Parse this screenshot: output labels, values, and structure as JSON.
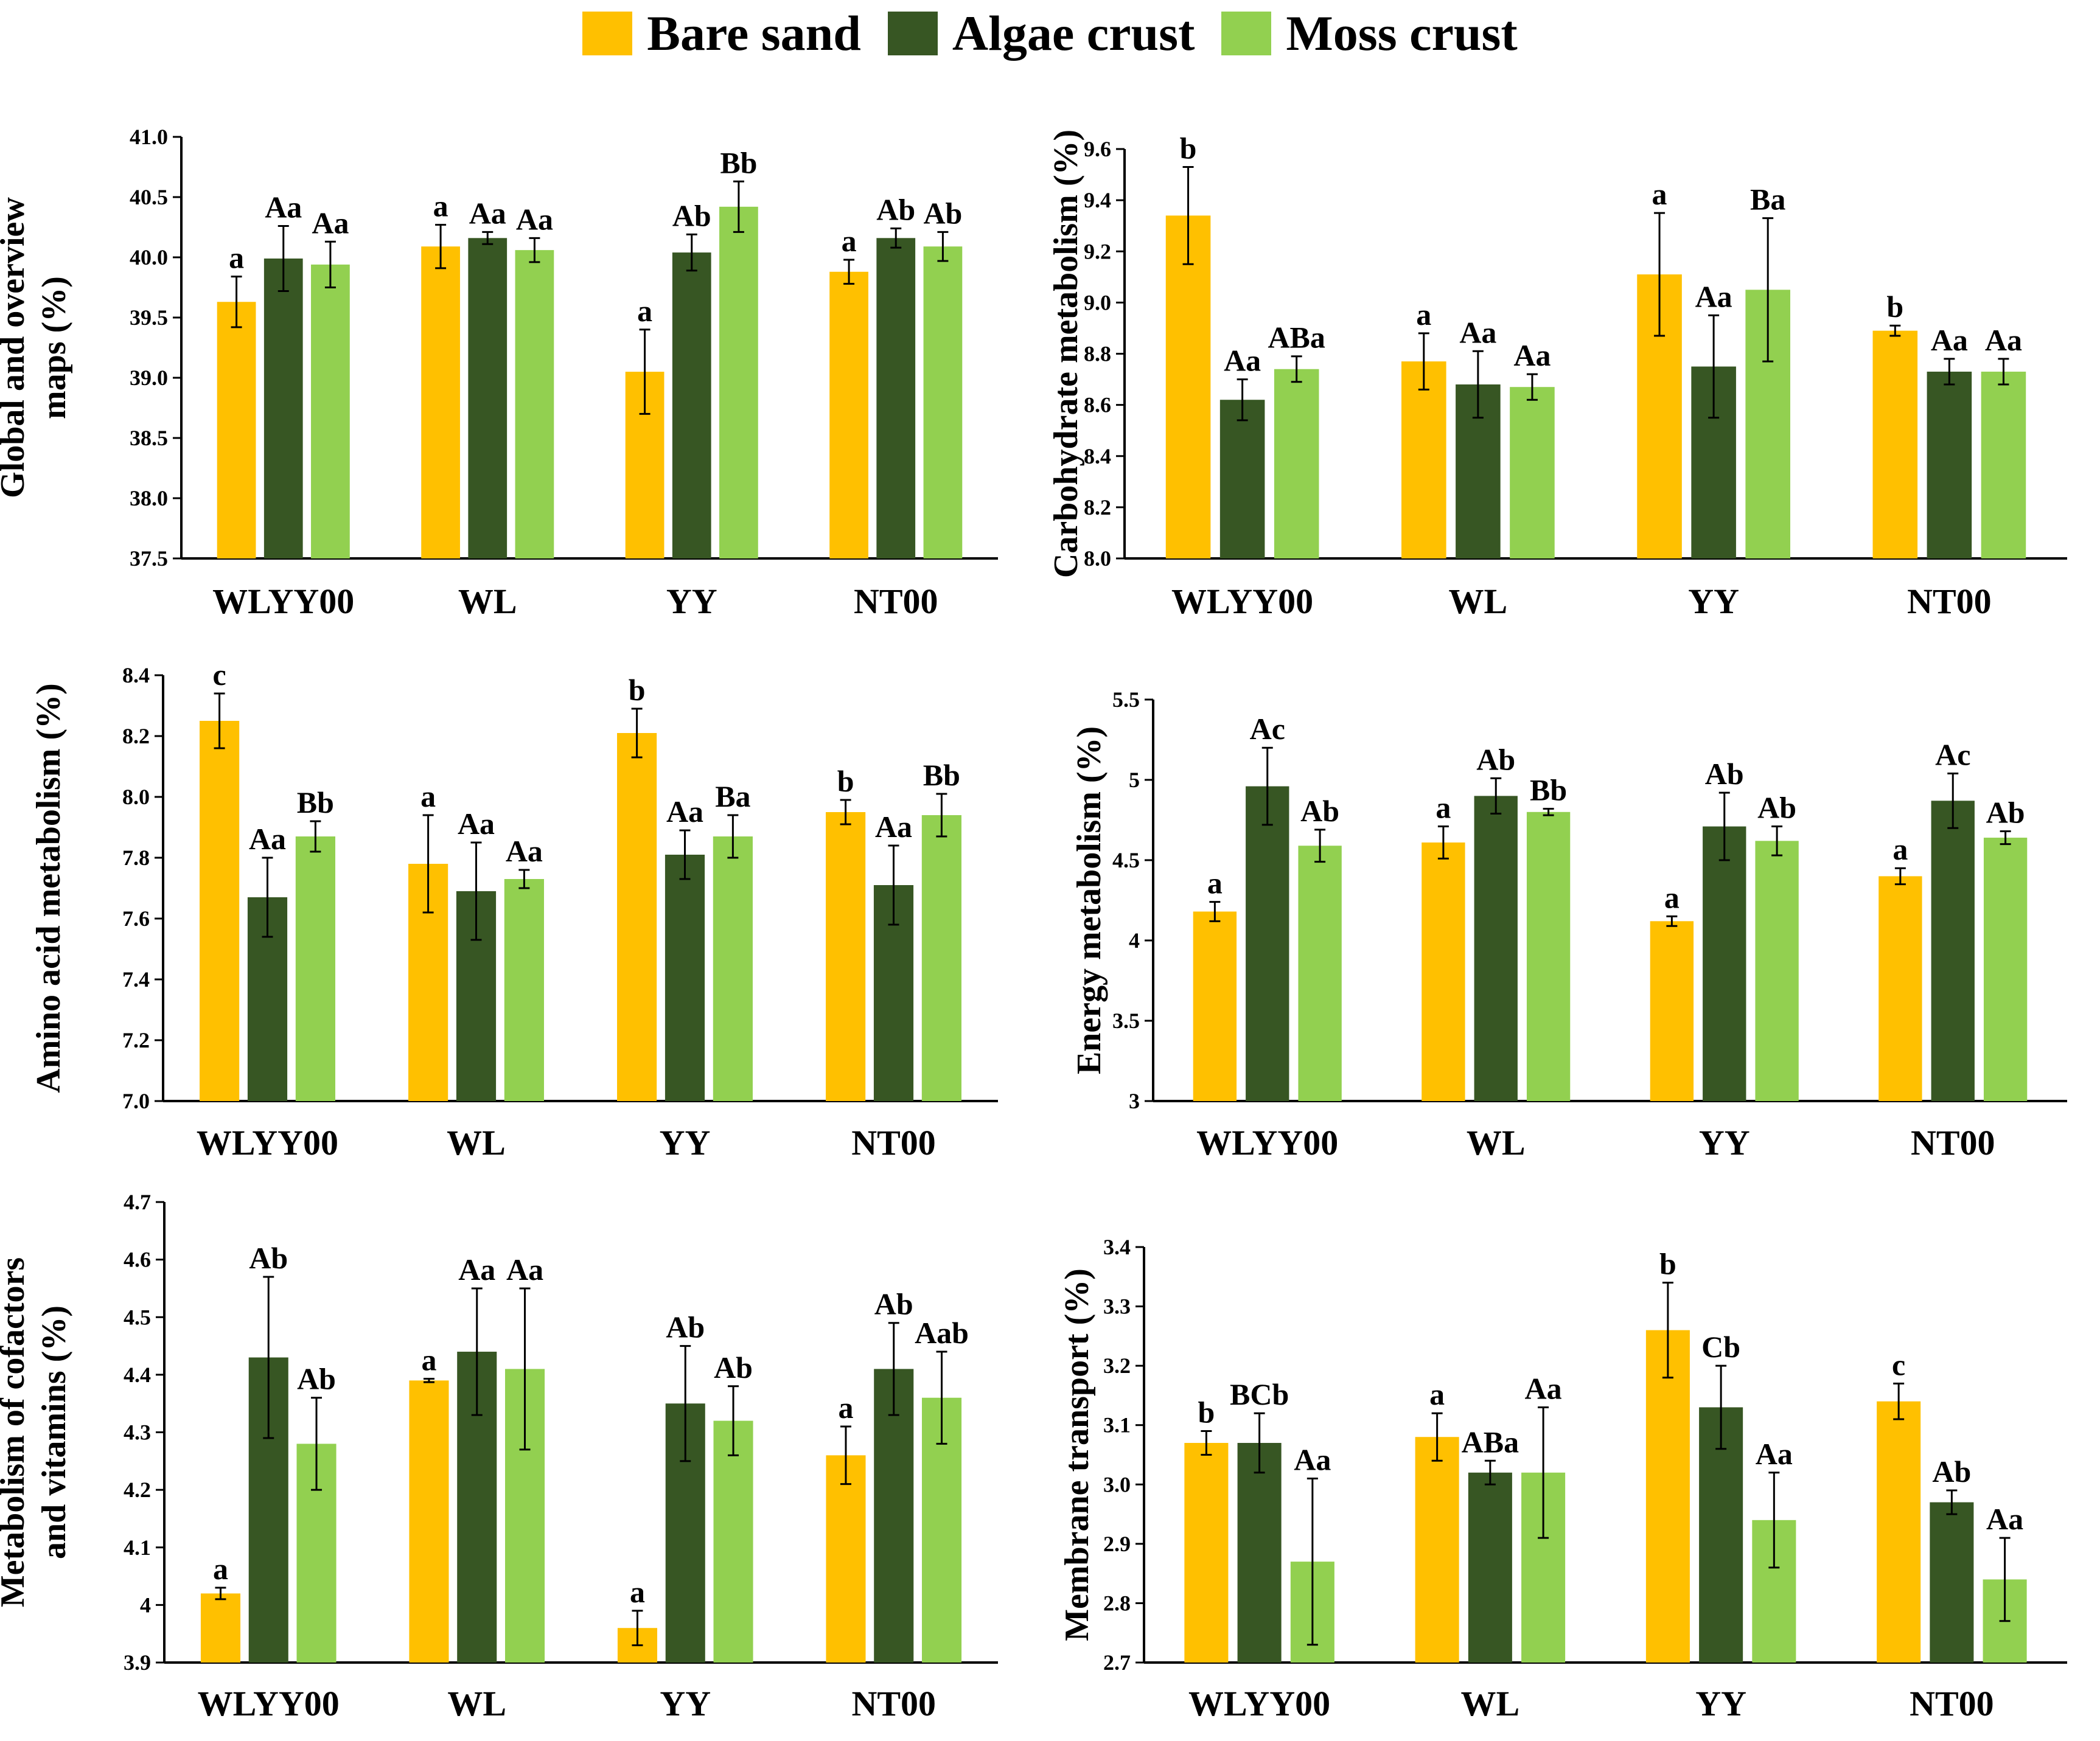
{
  "legend": [
    {
      "label": "Bare sand",
      "color": "#FFC000"
    },
    {
      "label": "Algae crust",
      "color": "#375623"
    },
    {
      "label": "Moss crust",
      "color": "#92D050"
    }
  ],
  "chart_data": [
    {
      "type": "bar",
      "ylabel": [
        "Global and overview",
        "maps (%)"
      ],
      "categories": [
        "WLYY00",
        "WL",
        "YY",
        "NT00"
      ],
      "ylim": [
        37.5,
        41.0
      ],
      "yticks": [
        "37.5",
        "38.0",
        "38.5",
        "39.0",
        "39.5",
        "40.0",
        "40.5",
        "41.0"
      ],
      "series": [
        {
          "name": "Bare sand",
          "values": [
            39.63,
            40.09,
            39.05,
            39.88
          ],
          "errors": [
            0.21,
            0.18,
            0.35,
            0.1
          ],
          "labels": [
            "a",
            "a",
            "a",
            "a"
          ]
        },
        {
          "name": "Algae crust",
          "values": [
            39.99,
            40.16,
            40.04,
            40.16
          ],
          "errors": [
            0.27,
            0.05,
            0.15,
            0.08
          ],
          "labels": [
            "Aa",
            "Aa",
            "Ab",
            "Ab"
          ]
        },
        {
          "name": "Moss crust",
          "values": [
            39.94,
            40.06,
            40.42,
            40.09
          ],
          "errors": [
            0.19,
            0.1,
            0.21,
            0.12
          ],
          "labels": [
            "Aa",
            "Aa",
            "Bb",
            "Ab"
          ]
        }
      ]
    },
    {
      "type": "bar",
      "ylabel": [
        "Carbohydrate metabolism (%)"
      ],
      "categories": [
        "WLYY00",
        "WL",
        "YY",
        "NT00"
      ],
      "ylim": [
        8.0,
        9.6
      ],
      "yticks": [
        "8.0",
        "8.2",
        "8.4",
        "8.6",
        "8.8",
        "9.0",
        "9.2",
        "9.4",
        "9.6"
      ],
      "series": [
        {
          "name": "Bare sand",
          "values": [
            9.34,
            8.77,
            9.11,
            8.89
          ],
          "errors": [
            0.19,
            0.11,
            0.24,
            0.02
          ],
          "labels": [
            "b",
            "a",
            "a",
            "b"
          ]
        },
        {
          "name": "Algae crust",
          "values": [
            8.62,
            8.68,
            8.75,
            8.73
          ],
          "errors": [
            0.08,
            0.13,
            0.2,
            0.05
          ],
          "labels": [
            "Aa",
            "Aa",
            "Aa",
            "Aa"
          ]
        },
        {
          "name": "Moss crust",
          "values": [
            8.74,
            8.67,
            9.05,
            8.73
          ],
          "errors": [
            0.05,
            0.05,
            0.28,
            0.05
          ],
          "labels": [
            "ABa",
            "Aa",
            "Ba",
            "Aa"
          ]
        }
      ]
    },
    {
      "type": "bar",
      "ylabel": [
        "Amino acid metabolism (%)"
      ],
      "categories": [
        "WLYY00",
        "WL",
        "YY",
        "NT00"
      ],
      "ylim": [
        7.0,
        8.4
      ],
      "yticks": [
        "7.0",
        "7.2",
        "7.4",
        "7.6",
        "7.8",
        "8.0",
        "8.2",
        "8.4"
      ],
      "series": [
        {
          "name": "Bare sand",
          "values": [
            8.25,
            7.78,
            8.21,
            7.95
          ],
          "errors": [
            0.09,
            0.16,
            0.08,
            0.04
          ],
          "labels": [
            "c",
            "a",
            "b",
            "b"
          ]
        },
        {
          "name": "Algae crust",
          "values": [
            7.67,
            7.69,
            7.81,
            7.71
          ],
          "errors": [
            0.13,
            0.16,
            0.08,
            0.13
          ],
          "labels": [
            "Aa",
            "Aa",
            "Aa",
            "Aa"
          ]
        },
        {
          "name": "Moss crust",
          "values": [
            7.87,
            7.73,
            7.87,
            7.94
          ],
          "errors": [
            0.05,
            0.03,
            0.07,
            0.07
          ],
          "labels": [
            "Bb",
            "Aa",
            "Ba",
            "Bb"
          ]
        }
      ]
    },
    {
      "type": "bar",
      "ylabel": [
        "Energy metabolism (%)"
      ],
      "categories": [
        "WLYY00",
        "WL",
        "YY",
        "NT00"
      ],
      "ylim": [
        3,
        5.5
      ],
      "yticks": [
        "3",
        "3.5",
        "4",
        "4.5",
        "5",
        "5.5"
      ],
      "series": [
        {
          "name": "Bare sand",
          "values": [
            4.18,
            4.61,
            4.12,
            4.4
          ],
          "errors": [
            0.06,
            0.1,
            0.03,
            0.05
          ],
          "labels": [
            "a",
            "a",
            "a",
            "a"
          ]
        },
        {
          "name": "Algae crust",
          "values": [
            4.96,
            4.9,
            4.71,
            4.87
          ],
          "errors": [
            0.24,
            0.11,
            0.21,
            0.17
          ],
          "labels": [
            "Ac",
            "Ab",
            "Ab",
            "Ac"
          ]
        },
        {
          "name": "Moss crust",
          "values": [
            4.59,
            4.8,
            4.62,
            4.64
          ],
          "errors": [
            0.1,
            0.02,
            0.09,
            0.04
          ],
          "labels": [
            "Ab",
            "Bb",
            "Ab",
            "Ab"
          ]
        }
      ]
    },
    {
      "type": "bar",
      "ylabel": [
        "Metabolism of cofactors",
        "and vitamins (%)"
      ],
      "categories": [
        "WLYY00",
        "WL",
        "YY",
        "NT00"
      ],
      "ylim": [
        3.9,
        4.7
      ],
      "yticks": [
        "3.9",
        "4",
        "4.1",
        "4.2",
        "4.3",
        "4.4",
        "4.5",
        "4.6",
        "4.7"
      ],
      "series": [
        {
          "name": "Bare sand",
          "values": [
            4.02,
            4.39,
            3.96,
            4.26
          ],
          "errors": [
            0.01,
            0.003,
            0.03,
            0.05
          ],
          "labels": [
            "a",
            "a",
            "a",
            "a"
          ]
        },
        {
          "name": "Algae crust",
          "values": [
            4.43,
            4.44,
            4.35,
            4.41
          ],
          "errors": [
            0.14,
            0.11,
            0.1,
            0.08
          ],
          "labels": [
            "Ab",
            "Aa",
            "Ab",
            "Ab"
          ]
        },
        {
          "name": "Moss crust",
          "values": [
            4.28,
            4.41,
            4.32,
            4.36
          ],
          "errors": [
            0.08,
            0.14,
            0.06,
            0.08
          ],
          "labels": [
            "Ab",
            "Aa",
            "Ab",
            "Aab"
          ]
        }
      ]
    },
    {
      "type": "bar",
      "ylabel": [
        "Membrane transport (%)"
      ],
      "categories": [
        "WLYY00",
        "WL",
        "YY",
        "NT00"
      ],
      "ylim": [
        2.7,
        3.4
      ],
      "yticks": [
        "2.7",
        "2.8",
        "2.9",
        "3.0",
        "3.1",
        "3.2",
        "3.3",
        "3.4"
      ],
      "series": [
        {
          "name": "Bare sand",
          "values": [
            3.07,
            3.08,
            3.26,
            3.14
          ],
          "errors": [
            0.02,
            0.04,
            0.08,
            0.03
          ],
          "labels": [
            "b",
            "a",
            "b",
            "c"
          ]
        },
        {
          "name": "Algae crust",
          "values": [
            3.07,
            3.02,
            3.13,
            2.97
          ],
          "errors": [
            0.05,
            0.02,
            0.07,
            0.02
          ],
          "labels": [
            "BCb",
            "ABa",
            "Cb",
            "Ab"
          ]
        },
        {
          "name": "Moss crust",
          "values": [
            2.87,
            3.02,
            2.94,
            2.84
          ],
          "errors": [
            0.14,
            0.11,
            0.08,
            0.07
          ],
          "labels": [
            "Aa",
            "Aa",
            "Aa",
            "Aa"
          ]
        }
      ]
    }
  ]
}
